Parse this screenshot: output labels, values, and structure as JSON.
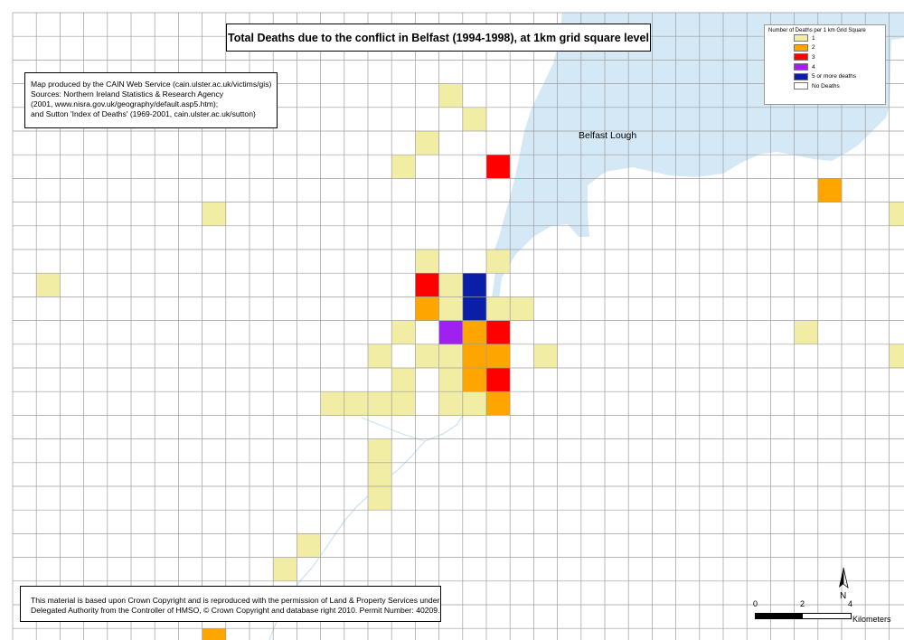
{
  "title": "Total Deaths due to the conflict in Belfast (1994-1998), at 1km grid square level",
  "credits": [
    "Map produced by the CAIN Web Service (cain.ulster.ac.uk/victims/gis)",
    "Sources: Northern Ireland Statistics & Research Agency",
    "(2001, www.nisra.gov.uk/geography/default.asp5.htm);",
    "and Sutton 'Index of Deaths' (1969-2001, cain.ulster.ac.uk/sutton)"
  ],
  "copyright": [
    "This material is based upon Crown Copyright and is reproduced with the permission of Land & Property Services under",
    "Delegated Authority from the Controller of HMSO, © Crown Copyright and database right 2010. Permit Number: 40209."
  ],
  "legend": {
    "title": "Number of Deaths per 1 km Grid Square",
    "items": [
      {
        "label": "1",
        "color": "#f2eda4"
      },
      {
        "label": "2",
        "color": "#ffa500"
      },
      {
        "label": "3",
        "color": "#ff0000"
      },
      {
        "label": "4",
        "color": "#a020f0"
      },
      {
        "label": "5 or more deaths",
        "color": "#0a1ea8"
      },
      {
        "label": "No Deaths",
        "color": "#ffffff"
      }
    ]
  },
  "place_label": "Belfast Lough",
  "scale": {
    "ticks": [
      "0",
      "2",
      "4"
    ],
    "units": "Kilometers"
  },
  "north_label": "N",
  "colors": {
    "water": "#d4e8f5",
    "grid": "#9e9e9e"
  },
  "grid_cells": [
    {
      "col": 18,
      "row": 3,
      "deaths": 1
    },
    {
      "col": 19,
      "row": 4,
      "deaths": 1
    },
    {
      "col": 17,
      "row": 5,
      "deaths": 1
    },
    {
      "col": 16,
      "row": 6,
      "deaths": 1
    },
    {
      "col": 20,
      "row": 6,
      "deaths": 3
    },
    {
      "col": 34,
      "row": 7,
      "deaths": 2
    },
    {
      "col": 8,
      "row": 8,
      "deaths": 1
    },
    {
      "col": 37,
      "row": 8,
      "deaths": 1
    },
    {
      "col": 17,
      "row": 10,
      "deaths": 1
    },
    {
      "col": 20,
      "row": 10,
      "deaths": 1
    },
    {
      "col": 1,
      "row": 11,
      "deaths": 1
    },
    {
      "col": 17,
      "row": 11,
      "deaths": 3
    },
    {
      "col": 18,
      "row": 11,
      "deaths": 1
    },
    {
      "col": 19,
      "row": 11,
      "deaths": 5
    },
    {
      "col": 17,
      "row": 12,
      "deaths": 2
    },
    {
      "col": 18,
      "row": 12,
      "deaths": 1
    },
    {
      "col": 19,
      "row": 12,
      "deaths": 5
    },
    {
      "col": 20,
      "row": 12,
      "deaths": 1
    },
    {
      "col": 21,
      "row": 12,
      "deaths": 1
    },
    {
      "col": 16,
      "row": 13,
      "deaths": 1
    },
    {
      "col": 18,
      "row": 13,
      "deaths": 4
    },
    {
      "col": 19,
      "row": 13,
      "deaths": 2
    },
    {
      "col": 20,
      "row": 13,
      "deaths": 3
    },
    {
      "col": 33,
      "row": 13,
      "deaths": 1
    },
    {
      "col": 15,
      "row": 14,
      "deaths": 1
    },
    {
      "col": 17,
      "row": 14,
      "deaths": 1
    },
    {
      "col": 18,
      "row": 14,
      "deaths": 1
    },
    {
      "col": 19,
      "row": 14,
      "deaths": 2
    },
    {
      "col": 20,
      "row": 14,
      "deaths": 2
    },
    {
      "col": 22,
      "row": 14,
      "deaths": 1
    },
    {
      "col": 37,
      "row": 14,
      "deaths": 1
    },
    {
      "col": 16,
      "row": 15,
      "deaths": 1
    },
    {
      "col": 18,
      "row": 15,
      "deaths": 1
    },
    {
      "col": 19,
      "row": 15,
      "deaths": 2
    },
    {
      "col": 20,
      "row": 15,
      "deaths": 3
    },
    {
      "col": 13,
      "row": 16,
      "deaths": 1
    },
    {
      "col": 14,
      "row": 16,
      "deaths": 1
    },
    {
      "col": 15,
      "row": 16,
      "deaths": 1
    },
    {
      "col": 16,
      "row": 16,
      "deaths": 1
    },
    {
      "col": 18,
      "row": 16,
      "deaths": 1
    },
    {
      "col": 19,
      "row": 16,
      "deaths": 1
    },
    {
      "col": 20,
      "row": 16,
      "deaths": 2
    },
    {
      "col": 15,
      "row": 18,
      "deaths": 1
    },
    {
      "col": 15,
      "row": 19,
      "deaths": 1
    },
    {
      "col": 15,
      "row": 20,
      "deaths": 1
    },
    {
      "col": 12,
      "row": 22,
      "deaths": 1
    },
    {
      "col": 11,
      "row": 23,
      "deaths": 1
    },
    {
      "col": 8,
      "row": 26,
      "deaths": 2
    }
  ]
}
